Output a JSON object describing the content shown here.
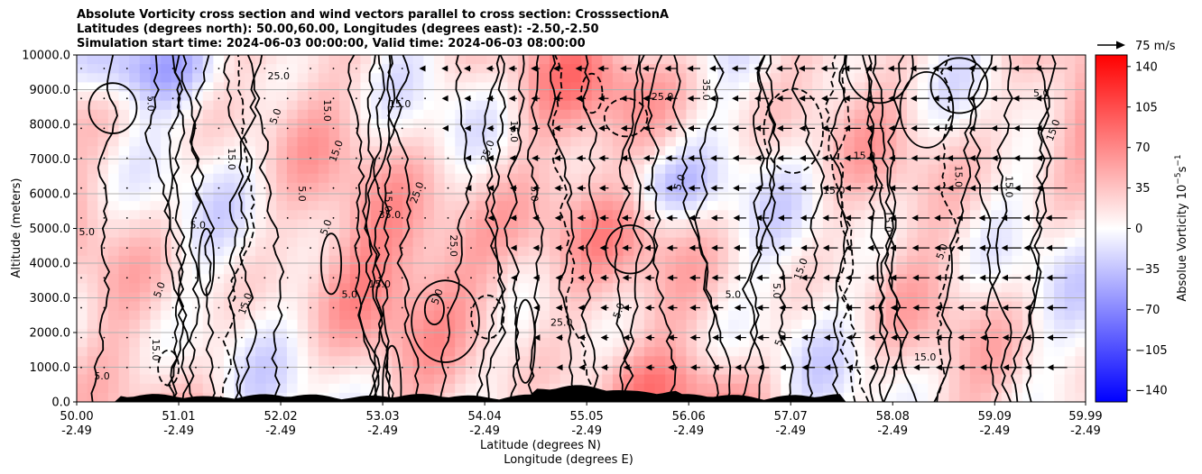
{
  "title_lines": [
    "Absolute Vorticity cross section and wind vectors parallel to cross section: CrosssectionA",
    "Latitudes (degrees north): 50.00,60.00, Longitudes (degrees east): -2.50,-2.50",
    "Simulation start time: 2024-06-03 00:00:00, Valid time: 2024-06-03 08:00:00"
  ],
  "chart_data": {
    "type": "heatmap",
    "ylabel": "Altitude (meters)",
    "xlabel": "Latitude (degrees N)",
    "xlabel2": "Longitude (degrees E)",
    "x_ticks": [
      {
        "lat": "50.00",
        "lon": "-2.49"
      },
      {
        "lat": "51.01",
        "lon": "-2.49"
      },
      {
        "lat": "52.02",
        "lon": "-2.49"
      },
      {
        "lat": "53.03",
        "lon": "-2.49"
      },
      {
        "lat": "54.04",
        "lon": "-2.49"
      },
      {
        "lat": "55.05",
        "lon": "-2.49"
      },
      {
        "lat": "56.06",
        "lon": "-2.49"
      },
      {
        "lat": "57.07",
        "lon": "-2.49"
      },
      {
        "lat": "58.08",
        "lon": "-2.49"
      },
      {
        "lat": "59.09",
        "lon": "-2.49"
      },
      {
        "lat": "59.99",
        "lon": "-2.49"
      }
    ],
    "x_range": [
      50.0,
      59.99
    ],
    "y_ticks": [
      "0.0",
      "1000.0",
      "2000.0",
      "3000.0",
      "4000.0",
      "5000.0",
      "6000.0",
      "7000.0",
      "8000.0",
      "9000.0",
      "10000.0"
    ],
    "y_range": [
      0,
      10000
    ],
    "grid": "horizontal",
    "colorbar": {
      "label": "Absolue Vorticity 10",
      "label_exp": "−5",
      "label_unit": "s",
      "label_unit_exp": "−1",
      "ticks": [
        "140",
        "105",
        "70",
        "35",
        "0",
        "−35",
        "−70",
        "−105",
        "−140"
      ],
      "range": [
        -150,
        150
      ],
      "colormap": "bwr",
      "low_color": "#0000ff",
      "mid_color": "#ffffff",
      "high_color": "#ff0000"
    },
    "quiver_key": "75 m/s",
    "contour_labels": [
      {
        "text": "5.0",
        "x": 50.25,
        "y": 650
      },
      {
        "text": "15.0",
        "x": 50.75,
        "y": 1500
      },
      {
        "text": "5.0",
        "x": 50.85,
        "y": 3200
      },
      {
        "text": "5.0",
        "x": 50.1,
        "y": 4800
      },
      {
        "text": "5.0",
        "x": 50.7,
        "y": 8600
      },
      {
        "text": "15.0",
        "x": 51.7,
        "y": 2800
      },
      {
        "text": "5.0",
        "x": 51.2,
        "y": 5000
      },
      {
        "text": "15.0",
        "x": 51.5,
        "y": 7000
      },
      {
        "text": "5.0",
        "x": 52.0,
        "y": 8200
      },
      {
        "text": "25.0",
        "x": 52.0,
        "y": 9300
      },
      {
        "text": "5.0",
        "x": 52.2,
        "y": 6000
      },
      {
        "text": "5.0",
        "x": 52.5,
        "y": 5000
      },
      {
        "text": "5.0",
        "x": 52.7,
        "y": 3000
      },
      {
        "text": "15.0",
        "x": 52.45,
        "y": 8400
      },
      {
        "text": "15.0",
        "x": 52.6,
        "y": 7200
      },
      {
        "text": "15.0",
        "x": 53.0,
        "y": 3300
      },
      {
        "text": "15.0",
        "x": 53.05,
        "y": 5800
      },
      {
        "text": "25.0",
        "x": 53.4,
        "y": 6000
      },
      {
        "text": "35.0",
        "x": 53.1,
        "y": 5300
      },
      {
        "text": "25.0",
        "x": 53.7,
        "y": 4500
      },
      {
        "text": "5.0",
        "x": 53.6,
        "y": 3000
      },
      {
        "text": "15.0",
        "x": 53.2,
        "y": 8500
      },
      {
        "text": "15.0",
        "x": 54.3,
        "y": 7800
      },
      {
        "text": "25.0",
        "x": 54.1,
        "y": 7200
      },
      {
        "text": "25.0",
        "x": 54.8,
        "y": 2200
      },
      {
        "text": "5.0",
        "x": 54.5,
        "y": 6000
      },
      {
        "text": "5.0",
        "x": 55.4,
        "y": 2600
      },
      {
        "text": "25.0",
        "x": 55.8,
        "y": 8700
      },
      {
        "text": "35.0",
        "x": 56.2,
        "y": 9000
      },
      {
        "text": "5.0",
        "x": 56.0,
        "y": 6300
      },
      {
        "text": "5.0",
        "x": 56.5,
        "y": 3000
      },
      {
        "text": "5.0",
        "x": 56.9,
        "y": 3200
      },
      {
        "text": "15.0",
        "x": 57.2,
        "y": 3800
      },
      {
        "text": "15.0",
        "x": 57.5,
        "y": 6000
      },
      {
        "text": "15.0",
        "x": 58.0,
        "y": 5200
      },
      {
        "text": "5.0",
        "x": 57.0,
        "y": 1800
      },
      {
        "text": "15.0",
        "x": 57.8,
        "y": 7000
      },
      {
        "text": "15.0",
        "x": 58.7,
        "y": 6500
      },
      {
        "text": "5.0",
        "x": 58.6,
        "y": 4300
      },
      {
        "text": "15.0",
        "x": 58.4,
        "y": 1200
      },
      {
        "text": "15.0",
        "x": 59.2,
        "y": 6200
      },
      {
        "text": "15.0",
        "x": 59.7,
        "y": 7800
      },
      {
        "text": "5.0",
        "x": 59.55,
        "y": 8800
      }
    ]
  }
}
